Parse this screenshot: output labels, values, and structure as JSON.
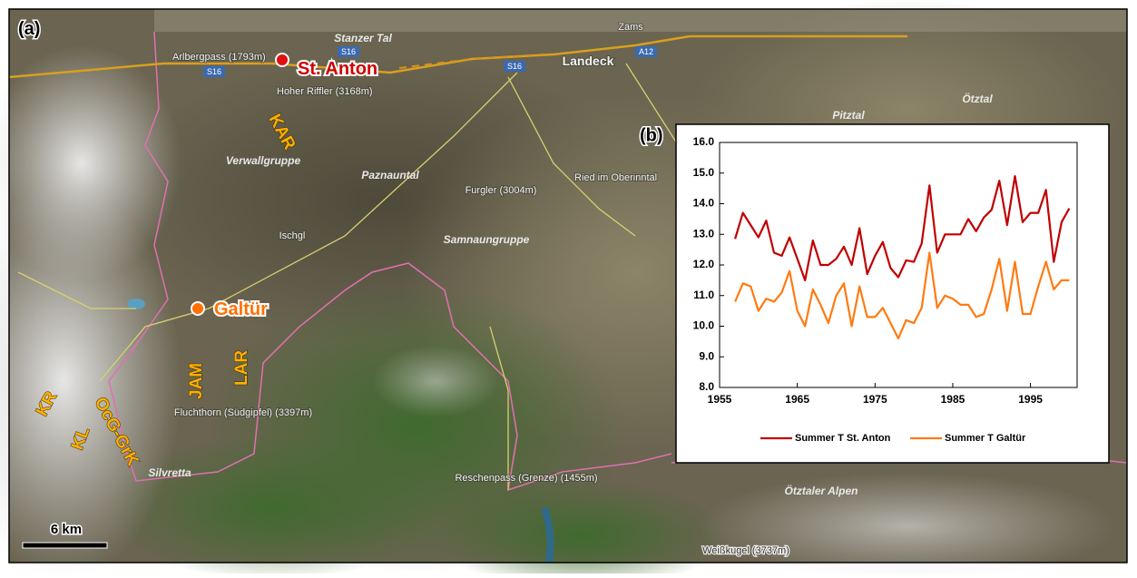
{
  "map": {
    "panel_label": "(a)",
    "sites": [
      "St. Anton",
      "Galtür"
    ],
    "ranges": [
      "KAR",
      "JAM",
      "LAR",
      "KR",
      "KL",
      "OcG-GrK"
    ],
    "road_labels": [
      "S16",
      "S16",
      "S16",
      "A12"
    ],
    "place_names": [
      "Stanzer Tal",
      "Zams",
      "Arlbergpass (1793m)",
      "Landeck",
      "Hoher Riffler (3168m)",
      "Verwallgruppe",
      "Paznauntal",
      "Pitztal",
      "Ötztal",
      "Ried im Oberinntal",
      "Furgler (3004m)",
      "Ischgl",
      "Samnaungruppe",
      "Fluchthorn (Südgipfel) (3397m)",
      "Silvretta",
      "Reschenpass (Grenze) (1455m)",
      "Ötztaler Alpen",
      "Weißkugel (3737m)"
    ],
    "scale": "6 km"
  },
  "chart_data": {
    "type": "line",
    "panel_label": "(b)",
    "x": [
      1957,
      1958,
      1959,
      1960,
      1961,
      1962,
      1963,
      1964,
      1965,
      1966,
      1967,
      1968,
      1969,
      1970,
      1971,
      1972,
      1973,
      1974,
      1975,
      1976,
      1977,
      1978,
      1979,
      1980,
      1981,
      1982,
      1983,
      1984,
      1985,
      1986,
      1987,
      1988,
      1989,
      1990,
      1991,
      1992,
      1993,
      1994,
      1995,
      1996,
      1997,
      1998,
      1999,
      2000
    ],
    "series": [
      {
        "name": "Summer T St. Anton",
        "color": "#c00000",
        "values": [
          12.85,
          13.7,
          13.3,
          12.9,
          13.45,
          12.4,
          12.3,
          12.9,
          12.2,
          11.5,
          12.8,
          12.0,
          12.0,
          12.2,
          12.6,
          12.0,
          13.2,
          11.7,
          12.3,
          12.75,
          11.9,
          11.6,
          12.15,
          12.1,
          12.7,
          14.6,
          12.4,
          13.0,
          13.0,
          13.0,
          13.5,
          13.1,
          13.55,
          13.8,
          14.75,
          13.3,
          14.9,
          13.4,
          13.7,
          13.7,
          14.45,
          12.1,
          13.4,
          13.85
        ]
      },
      {
        "name": "Summer T Galtür",
        "color": "#ff7a10",
        "values": [
          10.8,
          11.4,
          11.3,
          10.5,
          10.9,
          10.8,
          11.1,
          11.8,
          10.5,
          10.0,
          11.2,
          10.7,
          10.1,
          11.0,
          11.4,
          10.0,
          11.3,
          10.3,
          10.3,
          10.6,
          10.1,
          9.6,
          10.2,
          10.1,
          10.6,
          12.4,
          10.6,
          11.0,
          10.9,
          10.7,
          10.7,
          10.3,
          10.4,
          11.2,
          12.2,
          10.5,
          12.1,
          10.4,
          10.4,
          11.3,
          12.1,
          11.2,
          11.5,
          11.5
        ]
      }
    ],
    "xlim": [
      1955,
      2001
    ],
    "xticks": [
      1955,
      1965,
      1975,
      1985,
      1995
    ],
    "ylim": [
      8,
      16
    ],
    "yticks": [
      {
        "value": 8,
        "label": "8.0"
      },
      {
        "value": 9,
        "label": "9.0"
      },
      {
        "value": 10,
        "label": "10.0"
      },
      {
        "value": 11,
        "label": "11.0"
      },
      {
        "value": 12,
        "label": "12.0"
      },
      {
        "value": 13,
        "label": "13.0"
      },
      {
        "value": 14,
        "label": "14.0"
      },
      {
        "value": 15,
        "label": "15.0"
      },
      {
        "value": 16,
        "label": "16.0"
      }
    ],
    "legend": "bottom"
  }
}
